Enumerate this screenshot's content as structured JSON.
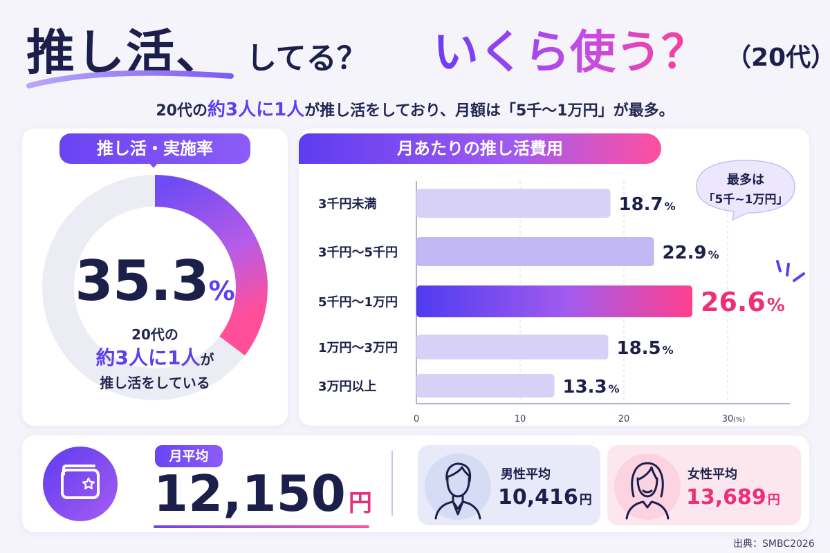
{
  "header": {
    "title_main": "推し活、",
    "title_question": "してる？",
    "title_highlight": "いくら使う？",
    "title_age": "（20代）",
    "subtitle_part1": "20代の",
    "subtitle_highlight": "約3人に1人",
    "subtitle_part2": "が推し活をしており、月額は「5千〜1万円」が最多。"
  },
  "participation": {
    "label": "推し活・実施率",
    "value_number": "35.3",
    "value_unit": "%",
    "line1": "20代の",
    "line2_highlight": "約3人に1人",
    "line2_suffix": "が",
    "line3": "推し活をしている"
  },
  "spending": {
    "label": "月あたりの推し活費用",
    "callout_line1": "最多は",
    "callout_line2": "「5千~1万円」"
  },
  "chart_data": [
    {
      "type": "pie",
      "title": "推し活・実施率",
      "categories": [
        "推し活をしている"
      ],
      "values": [
        35.3
      ],
      "unit": "%"
    },
    {
      "type": "bar",
      "orientation": "horizontal",
      "title": "月あたりの推し活費用",
      "categories": [
        "3千円未満",
        "3千円～5千円",
        "5千円～1万円",
        "1万円～3万円",
        "3万円以上"
      ],
      "values": [
        18.7,
        22.9,
        26.6,
        18.5,
        13.3
      ],
      "value_labels": [
        "18.7",
        "22.9",
        "26.6",
        "18.5",
        "13.3"
      ],
      "value_unit": "%",
      "highlight_index": 2,
      "xlim": [
        0,
        30
      ],
      "x_ticks": [
        "0",
        "10",
        "20",
        "30"
      ],
      "x_unit": "(%)",
      "grid": true,
      "colors": {
        "bar": "#d8d1f7",
        "bar_mid": "#c2b8f3",
        "highlight_start": "#4f3cf0",
        "highlight_end": "#ff3f8e",
        "highlight_label": "#ec2f77"
      }
    }
  ],
  "summary": {
    "avg_label": "月平均",
    "avg_value": "12,150",
    "avg_unit": "円",
    "male_label": "男性平均",
    "male_value": "10,416",
    "male_unit": "円",
    "female_label": "女性平均",
    "female_value": "13,689",
    "female_unit": "円"
  },
  "icons": {
    "wallet": "wallet-star-icon",
    "male": "male-person-icon",
    "female": "female-person-icon"
  },
  "source": "出典：SMBC2026"
}
